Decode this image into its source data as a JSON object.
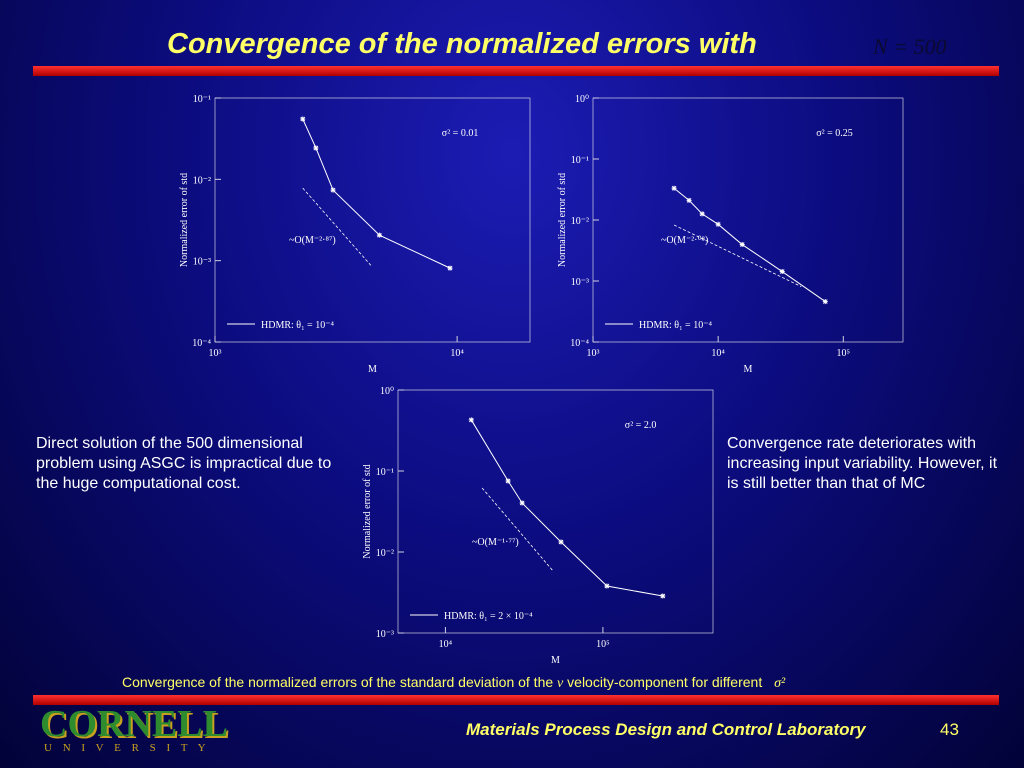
{
  "title": "Convergence of the normalized errors with",
  "title_math": "N = 500",
  "left_text": "Direct solution of the 500 dimensional problem using ASGC is impractical due to the huge computational cost.",
  "right_text": "Convergence rate deteriorates with increasing input variability. However, it is still better than that of MC",
  "caption": {
    "before": "Convergence of the normalized errors of the standard deviation of the",
    "symbol": "v",
    "after": "velocity-component for different",
    "sigma": "σ²"
  },
  "footer": {
    "logo": "CORNELL",
    "logo_sub": "U N I V E R S I T Y",
    "lab": "Materials Process Design and Control Laboratory",
    "page": "43"
  },
  "chart_data": [
    {
      "type": "line",
      "xlabel": "M",
      "ylabel": "Normalized error of std",
      "log_x": true,
      "log_y": true,
      "xlim": [
        1000,
        20000
      ],
      "ylim": [
        0.0001,
        0.1
      ],
      "xticks": [
        {
          "value": 1000,
          "label": "10³"
        },
        {
          "value": 10000,
          "label": "10⁴"
        }
      ],
      "yticks": [
        {
          "value": 0.1,
          "label": "10⁻¹"
        },
        {
          "value": 0.01,
          "label": "10⁻²"
        },
        {
          "value": 0.001,
          "label": "10⁻³"
        },
        {
          "value": 0.0001,
          "label": "10⁻⁴"
        }
      ],
      "annotation": "σ² = 0.01",
      "reference_label": "~O(M⁻²·⁸⁷)",
      "reference": {
        "x": [
          2304,
          4426
        ],
        "values": [
          0.0078,
          0.00086
        ]
      },
      "series": [
        {
          "name": "HDMR: θ₁ = 10⁻⁴",
          "color": "#ffffff",
          "x": [
            2304,
            2610,
            3073,
            4775,
            9350
          ],
          "values": [
            0.0552,
            0.0243,
            0.00738,
            0.00206,
            0.00081
          ]
        }
      ]
    },
    {
      "type": "line",
      "xlabel": "M",
      "ylabel": "Normalized error of std",
      "log_x": true,
      "log_y": true,
      "xlim": [
        1000,
        300000
      ],
      "ylim": [
        0.0001,
        1
      ],
      "xticks": [
        {
          "value": 1000,
          "label": "10³"
        },
        {
          "value": 10000,
          "label": "10⁴"
        },
        {
          "value": 100000,
          "label": "10⁵"
        }
      ],
      "yticks": [
        {
          "value": 1,
          "label": "10⁰"
        },
        {
          "value": 0.1,
          "label": "10⁻¹"
        },
        {
          "value": 0.01,
          "label": "10⁻²"
        },
        {
          "value": 0.001,
          "label": "10⁻³"
        },
        {
          "value": 0.0001,
          "label": "10⁻⁴"
        }
      ],
      "annotation": "σ² = 0.25",
      "reference_label": "~O(M⁻²·⁰⁸)",
      "reference": {
        "x": [
          4446,
          46100
        ],
        "values": [
          0.00828,
          0.00081
        ]
      },
      "series": [
        {
          "name": "HDMR: θ₁ = 10⁻⁴",
          "color": "#ffffff",
          "x": [
            4446,
            5861,
            7447,
            10000,
            15560,
            32500,
            71800
          ],
          "values": [
            0.0331,
            0.021,
            0.0126,
            0.0085,
            0.00396,
            0.00143,
            0.00046
          ]
        }
      ]
    },
    {
      "type": "line",
      "xlabel": "M",
      "ylabel": "Normalized error of std",
      "log_x": true,
      "log_y": true,
      "xlim": [
        5000,
        500000
      ],
      "ylim": [
        0.001,
        1
      ],
      "xticks": [
        {
          "value": 10000,
          "label": "10⁴"
        },
        {
          "value": 100000,
          "label": "10⁵"
        }
      ],
      "yticks": [
        {
          "value": 1,
          "label": "10⁰"
        },
        {
          "value": 0.1,
          "label": "10⁻¹"
        },
        {
          "value": 0.01,
          "label": "10⁻²"
        },
        {
          "value": 0.001,
          "label": "10⁻³"
        }
      ],
      "annotation": "σ² = 2.0",
      "reference_label": "~O(M⁻¹·⁷⁷)",
      "reference": {
        "x": [
          17100,
          48300
        ],
        "values": [
          0.0617,
          0.00582
        ]
      },
      "series": [
        {
          "name": "HDMR: θ₁ = 2 × 10⁻⁴",
          "color": "#ffffff",
          "x": [
            14600,
            25000,
            30700,
            54200,
            106000,
            240000
          ],
          "values": [
            0.427,
            0.0753,
            0.0403,
            0.0133,
            0.0038,
            0.00286
          ]
        }
      ]
    }
  ]
}
